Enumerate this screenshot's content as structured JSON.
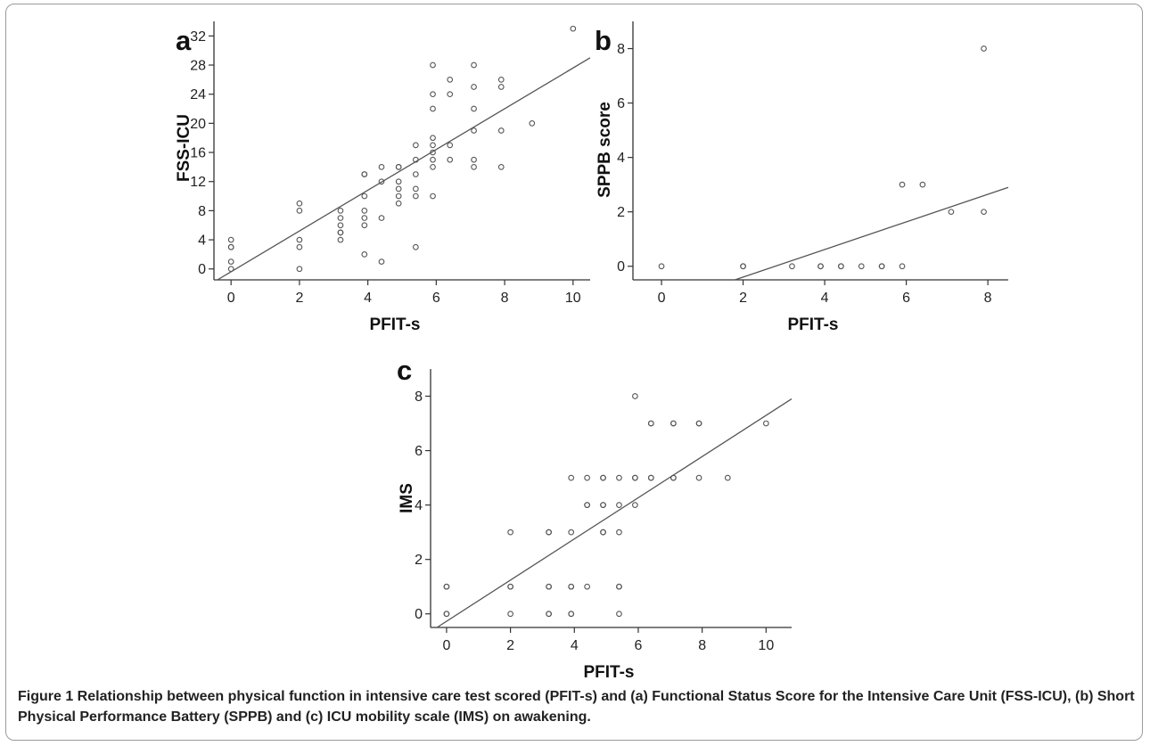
{
  "caption": {
    "lead": "Figure 1",
    "text": " Relationship between physical function in intensive care test scored (PFIT-s) and (a) Functional Status Score for the Intensive Care Unit (FSS-ICU), (b) Short Physical Performance Battery (SPPB) and (c) ICU mobility scale (IMS) on awakening."
  },
  "chart_data": [
    {
      "panel": "a",
      "type": "scatter",
      "xlabel": "PFIT-s",
      "ylabel": "FSS-ICU",
      "xlim": [
        -0.5,
        10.5
      ],
      "ylim": [
        -1.5,
        34
      ],
      "xticks": [
        0,
        2,
        4,
        6,
        8,
        10
      ],
      "yticks": [
        0,
        4,
        8,
        12,
        16,
        20,
        24,
        28,
        32
      ],
      "points": [
        [
          0,
          0
        ],
        [
          0,
          1
        ],
        [
          0,
          3
        ],
        [
          0,
          3
        ],
        [
          0,
          4
        ],
        [
          2,
          0
        ],
        [
          2,
          3
        ],
        [
          2,
          4
        ],
        [
          2,
          8
        ],
        [
          2,
          9
        ],
        [
          3.2,
          4
        ],
        [
          3.2,
          5
        ],
        [
          3.2,
          5
        ],
        [
          3.2,
          6
        ],
        [
          3.2,
          7
        ],
        [
          3.2,
          8
        ],
        [
          3.9,
          2
        ],
        [
          3.9,
          6
        ],
        [
          3.9,
          7
        ],
        [
          3.9,
          8
        ],
        [
          3.9,
          10
        ],
        [
          3.9,
          13
        ],
        [
          3.9,
          13
        ],
        [
          4.4,
          1
        ],
        [
          4.4,
          7
        ],
        [
          4.4,
          12
        ],
        [
          4.4,
          14
        ],
        [
          4.9,
          9
        ],
        [
          4.9,
          10
        ],
        [
          4.9,
          11
        ],
        [
          4.9,
          12
        ],
        [
          4.9,
          14
        ],
        [
          4.9,
          14
        ],
        [
          5.4,
          3
        ],
        [
          5.4,
          10
        ],
        [
          5.4,
          11
        ],
        [
          5.4,
          13
        ],
        [
          5.4,
          15
        ],
        [
          5.4,
          17
        ],
        [
          5.9,
          10
        ],
        [
          5.9,
          14
        ],
        [
          5.9,
          15
        ],
        [
          5.9,
          16
        ],
        [
          5.9,
          17
        ],
        [
          5.9,
          18
        ],
        [
          5.9,
          22
        ],
        [
          5.9,
          24
        ],
        [
          5.9,
          28
        ],
        [
          6.4,
          15
        ],
        [
          6.4,
          17
        ],
        [
          6.4,
          24
        ],
        [
          6.4,
          26
        ],
        [
          7.1,
          14
        ],
        [
          7.1,
          15
        ],
        [
          7.1,
          19
        ],
        [
          7.1,
          22
        ],
        [
          7.1,
          25
        ],
        [
          7.1,
          28
        ],
        [
          7.9,
          14
        ],
        [
          7.9,
          19
        ],
        [
          7.9,
          25
        ],
        [
          7.9,
          26
        ],
        [
          8.8,
          20
        ],
        [
          10,
          33
        ]
      ],
      "fit_line": [
        [
          -0.4,
          -1.5
        ],
        [
          10.5,
          29
        ]
      ]
    },
    {
      "panel": "b",
      "type": "scatter",
      "xlabel": "PFIT-s",
      "ylabel": "SPPB score",
      "xlim": [
        -0.7,
        8.5
      ],
      "ylim": [
        -0.5,
        9
      ],
      "xticks": [
        0,
        2,
        4,
        6,
        8
      ],
      "yticks": [
        0,
        2,
        4,
        6,
        8
      ],
      "points": [
        [
          0,
          0
        ],
        [
          2,
          0
        ],
        [
          2,
          0
        ],
        [
          3.2,
          0
        ],
        [
          3.9,
          0
        ],
        [
          3.9,
          0
        ],
        [
          4.4,
          0
        ],
        [
          4.4,
          0
        ],
        [
          4.9,
          0
        ],
        [
          5.4,
          0
        ],
        [
          5.4,
          0
        ],
        [
          5.9,
          0
        ],
        [
          5.9,
          3
        ],
        [
          6.4,
          3
        ],
        [
          7.1,
          2
        ],
        [
          7.9,
          2
        ],
        [
          7.9,
          8
        ]
      ],
      "fit_line": [
        [
          1.8,
          -0.5
        ],
        [
          8.5,
          2.9
        ]
      ]
    },
    {
      "panel": "c",
      "type": "scatter",
      "xlabel": "PFIT-s",
      "ylabel": "IMS",
      "xlim": [
        -0.5,
        10.8
      ],
      "ylim": [
        -0.5,
        9
      ],
      "xticks": [
        0,
        2,
        4,
        6,
        8,
        10
      ],
      "yticks": [
        0,
        2,
        4,
        6,
        8
      ],
      "points": [
        [
          0,
          0
        ],
        [
          0,
          0
        ],
        [
          0,
          1
        ],
        [
          0,
          1
        ],
        [
          2,
          0
        ],
        [
          2,
          1
        ],
        [
          2,
          1
        ],
        [
          2,
          3
        ],
        [
          3.2,
          0
        ],
        [
          3.2,
          0
        ],
        [
          3.2,
          1
        ],
        [
          3.2,
          1
        ],
        [
          3.2,
          3
        ],
        [
          3.2,
          3
        ],
        [
          3.9,
          0
        ],
        [
          3.9,
          0
        ],
        [
          3.9,
          1
        ],
        [
          3.9,
          1
        ],
        [
          3.9,
          3
        ],
        [
          3.9,
          5
        ],
        [
          4.4,
          1
        ],
        [
          4.4,
          4
        ],
        [
          4.4,
          4
        ],
        [
          4.4,
          5
        ],
        [
          4.9,
          3
        ],
        [
          4.9,
          3
        ],
        [
          4.9,
          4
        ],
        [
          4.9,
          4
        ],
        [
          4.9,
          5
        ],
        [
          4.9,
          5
        ],
        [
          5.4,
          0
        ],
        [
          5.4,
          1
        ],
        [
          5.4,
          1
        ],
        [
          5.4,
          3
        ],
        [
          5.4,
          4
        ],
        [
          5.4,
          5
        ],
        [
          5.9,
          4
        ],
        [
          5.9,
          5
        ],
        [
          5.9,
          5
        ],
        [
          5.9,
          8
        ],
        [
          6.4,
          5
        ],
        [
          6.4,
          5
        ],
        [
          6.4,
          7
        ],
        [
          6.4,
          7
        ],
        [
          7.1,
          5
        ],
        [
          7.1,
          5
        ],
        [
          7.1,
          7
        ],
        [
          7.1,
          7
        ],
        [
          7.9,
          5
        ],
        [
          7.9,
          7
        ],
        [
          7.9,
          7
        ],
        [
          8.8,
          5
        ],
        [
          10,
          7
        ]
      ],
      "fit_line": [
        [
          -0.3,
          -0.5
        ],
        [
          10.8,
          7.9
        ]
      ]
    }
  ]
}
